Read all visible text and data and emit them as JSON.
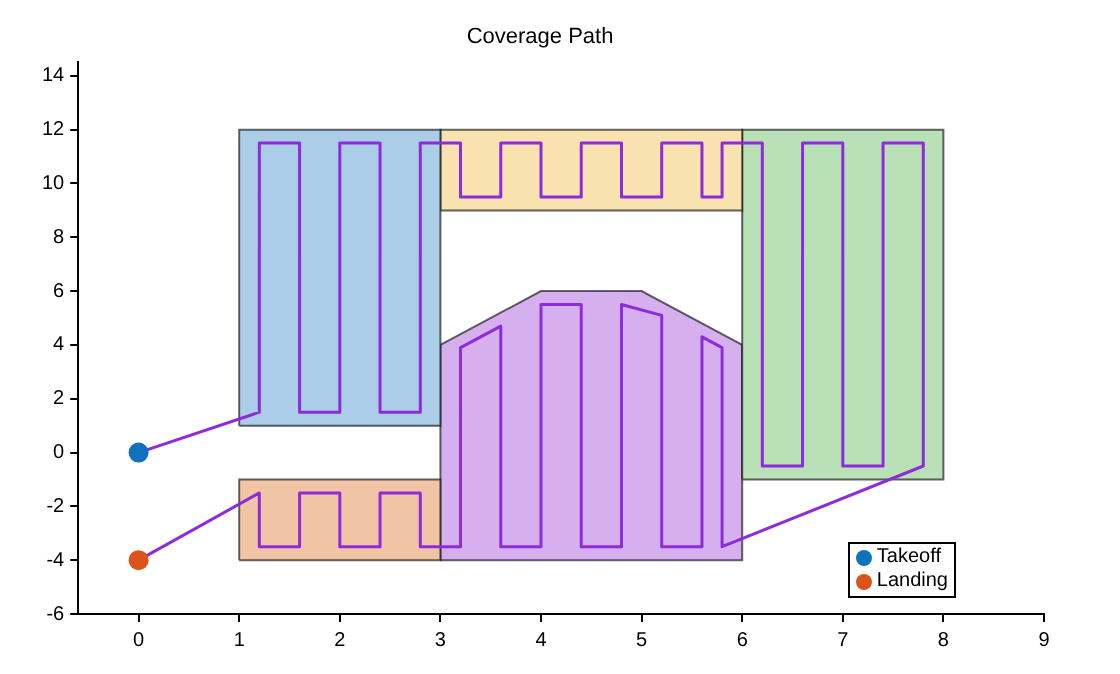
{
  "chart_data": {
    "type": "area",
    "title": "Coverage Path",
    "xlim": [
      -0.6,
      9
    ],
    "xticks": [
      0,
      1,
      2,
      3,
      4,
      5,
      6,
      7,
      8,
      9
    ],
    "ylim": [
      -6,
      14.5
    ],
    "yticks": [
      -6,
      -4,
      -2,
      0,
      2,
      4,
      6,
      8,
      10,
      12,
      14
    ],
    "grid": false,
    "legend": "bottom right",
    "series": [
      {
        "color": "#abcde8",
        "x": [
          1,
          3,
          3,
          1,
          1
        ],
        "values": [
          1,
          1,
          12,
          12,
          1
        ]
      },
      {
        "color": "#f8e2af",
        "x": [
          3,
          6,
          6,
          3,
          3
        ],
        "values": [
          9,
          9,
          12,
          12,
          9
        ]
      },
      {
        "color": "#bae0b7",
        "x": [
          6,
          8,
          8,
          6,
          6
        ],
        "values": [
          -1,
          -1,
          12,
          12,
          -1
        ]
      },
      {
        "color": "#f1c4a5",
        "x": [
          1,
          3,
          3,
          1,
          1
        ],
        "values": [
          -4,
          -4,
          -1,
          -1,
          -4
        ]
      },
      {
        "color": "#d6afee",
        "x": [
          3,
          6,
          6,
          5,
          4,
          3,
          3
        ],
        "values": [
          -4,
          -4,
          4,
          6,
          6,
          4,
          -4
        ]
      },
      {
        "type": "line",
        "color": "#8e2bdc",
        "marker": "none",
        "x": [
          0,
          1.2,
          1.2,
          1.6,
          1.6,
          2,
          2,
          2.4,
          2.4,
          2.8,
          2.8,
          3.2,
          3.2,
          3.6,
          3.6,
          4,
          4,
          4.4,
          4.4,
          4.8,
          4.8,
          5.2,
          5.2,
          5.6,
          5.6,
          5.8,
          5.8,
          6.2,
          6.2,
          6.6,
          6.6,
          7,
          7,
          7.4,
          7.4,
          7.8,
          7.8,
          5.8,
          5.8,
          5.6,
          5.6,
          5.2,
          5.2,
          4.8,
          4.8,
          4.4,
          4.4,
          4,
          4,
          3.6,
          3.6,
          3.2,
          3.2,
          2.8,
          2.8,
          2.4,
          2.4,
          2,
          2,
          1.6,
          1.6,
          1.2,
          1.2,
          0
        ],
        "values": [
          0,
          1.5,
          11.5,
          11.5,
          1.5,
          1.5,
          11.5,
          11.5,
          1.5,
          1.5,
          11.5,
          11.5,
          9.5,
          9.5,
          11.5,
          11.5,
          9.5,
          9.5,
          11.5,
          11.5,
          9.5,
          9.5,
          11.5,
          11.5,
          9.5,
          9.5,
          11.5,
          11.5,
          -0.5,
          -0.5,
          11.5,
          11.5,
          -0.5,
          -0.5,
          11.5,
          11.5,
          -0.5,
          -3.5,
          3.9,
          4.3,
          -3.5,
          -3.5,
          5.1,
          5.5,
          -3.5,
          -3.5,
          5.5,
          5.5,
          -3.5,
          -3.5,
          4.7,
          3.9,
          -3.5,
          -3.5,
          -1.5,
          -1.5,
          -3.5,
          -3.5,
          -1.5,
          -1.5,
          -3.5,
          -3.5,
          -1.5,
          -4
        ]
      },
      {
        "type": "scatter",
        "name": "Takeoff",
        "color": "#0f72bd",
        "marker": "circle",
        "x": [
          0
        ],
        "values": [
          0
        ]
      },
      {
        "type": "scatter",
        "name": "Landing",
        "color": "#d9531a",
        "marker": "circle",
        "x": [
          0
        ],
        "values": [
          -4
        ]
      }
    ]
  }
}
